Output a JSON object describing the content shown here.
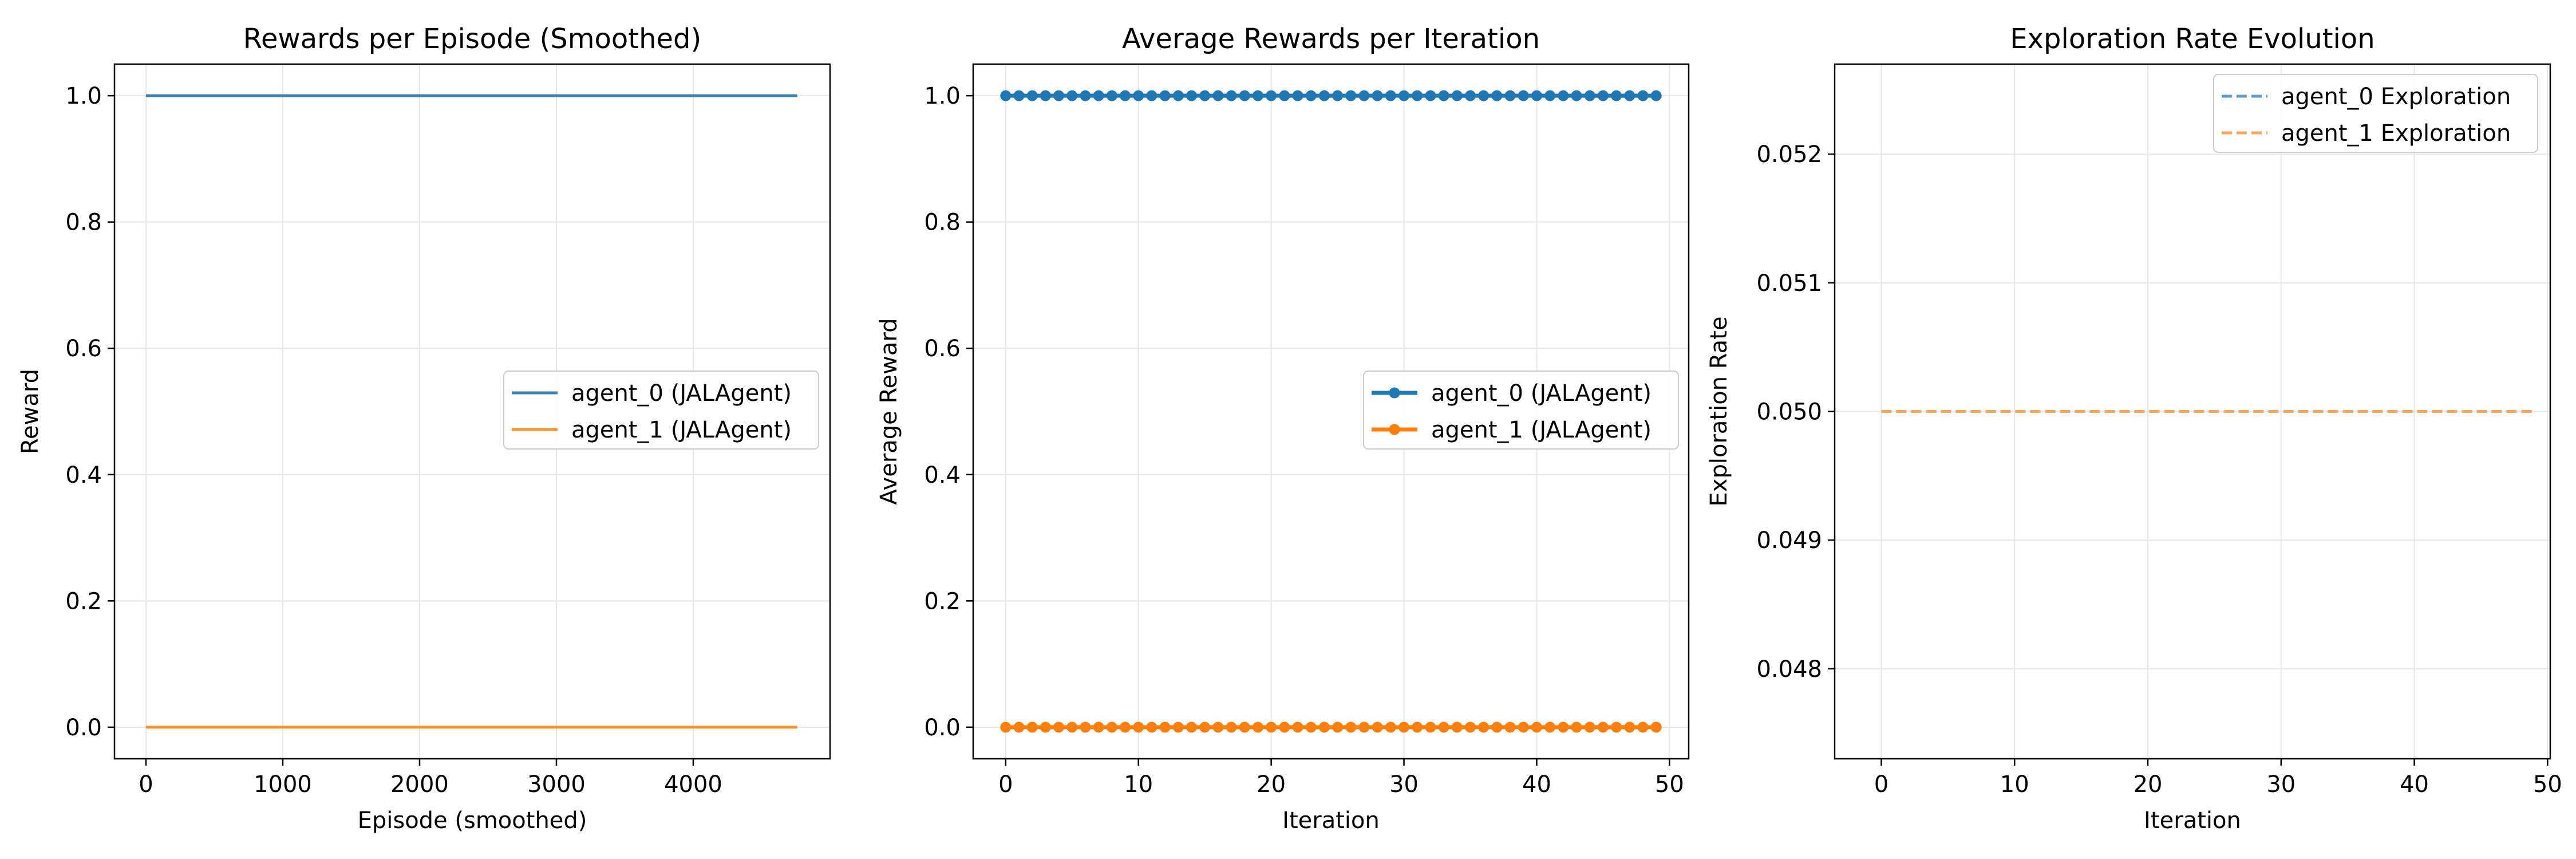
{
  "chart_data": [
    {
      "type": "line",
      "title": "Rewards per Episode (Smoothed)",
      "xlabel": "Episode (smoothed)",
      "ylabel": "Reward",
      "xlim": [
        -230,
        5000
      ],
      "ylim": [
        -0.05,
        1.05
      ],
      "xticks": [
        0,
        1000,
        2000,
        3000,
        4000
      ],
      "xtick_labels": [
        "0",
        "1000",
        "2000",
        "3000",
        "4000"
      ],
      "yticks": [
        0.0,
        0.2,
        0.4,
        0.6,
        0.8,
        1.0
      ],
      "ytick_labels": [
        "0.0",
        "0.2",
        "0.4",
        "0.6",
        "0.8",
        "1.0"
      ],
      "grid": true,
      "legend": "center-right",
      "series": [
        {
          "name": "agent_0 (JALAgent)",
          "color": "#3d7fb7",
          "style": "solid",
          "x": [
            0,
            4760
          ],
          "values": [
            1.0,
            1.0
          ]
        },
        {
          "name": "agent_1 (JALAgent)",
          "color": "#f5962e",
          "style": "solid",
          "x": [
            0,
            4760
          ],
          "values": [
            0.0,
            0.0
          ]
        }
      ]
    },
    {
      "type": "line",
      "title": "Average Rewards per Iteration",
      "xlabel": "Iteration",
      "ylabel": "Average Reward",
      "xlim": [
        -2.45,
        51.45
      ],
      "ylim": [
        -0.05,
        1.05
      ],
      "xticks": [
        0,
        10,
        20,
        30,
        40,
        50
      ],
      "xtick_labels": [
        "0",
        "10",
        "20",
        "30",
        "40",
        "50"
      ],
      "yticks": [
        0.0,
        0.2,
        0.4,
        0.6,
        0.8,
        1.0
      ],
      "ytick_labels": [
        "0.0",
        "0.2",
        "0.4",
        "0.6",
        "0.8",
        "1.0"
      ],
      "grid": true,
      "legend": "center-right",
      "n_points": 50,
      "series": [
        {
          "name": "agent_0 (JALAgent)",
          "color": "#1f77b4",
          "style": "solid-marker",
          "constant": 1.0
        },
        {
          "name": "agent_1 (JALAgent)",
          "color": "#ff7f0e",
          "style": "solid-marker",
          "constant": 0.0
        }
      ]
    },
    {
      "type": "line",
      "title": "Exploration Rate Evolution",
      "xlabel": "Iteration",
      "ylabel": "Exploration Rate",
      "xlim": [
        -3.5,
        50.2
      ],
      "ylim": [
        0.0473,
        0.0527
      ],
      "xticks": [
        0,
        10,
        20,
        30,
        40,
        50
      ],
      "xtick_labels": [
        "0",
        "10",
        "20",
        "30",
        "40",
        "50"
      ],
      "yticks": [
        0.048,
        0.049,
        0.05,
        0.051,
        0.052
      ],
      "ytick_labels": [
        "0.048",
        "0.049",
        "0.050",
        "0.051",
        "0.052"
      ],
      "grid": true,
      "legend": "top-right",
      "series": [
        {
          "name": "agent_0 Exploration",
          "color": "#5a9ccc",
          "style": "dashed",
          "x": [
            0,
            49
          ],
          "values": [
            0.05,
            0.05
          ]
        },
        {
          "name": "agent_1 Exploration",
          "color": "#f9a85d",
          "style": "dashed",
          "x": [
            0,
            49
          ],
          "values": [
            0.05,
            0.05
          ]
        }
      ]
    }
  ]
}
